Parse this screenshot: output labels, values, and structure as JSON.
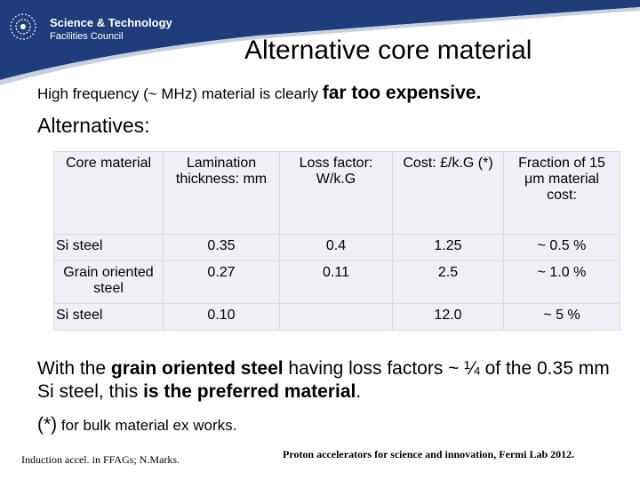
{
  "header": {
    "logo_line1": "Science & Technology",
    "logo_line2": "Facilities Council",
    "band_color": "#1f3d7a"
  },
  "slide": {
    "title": "Alternative core material",
    "subtitle_part1": "High frequency  (~ MHz) material is clearly ",
    "subtitle_emph": "far too expensive.",
    "alternatives_label": "Alternatives:"
  },
  "table": {
    "headers": [
      "Core material",
      "Lamination thickness: mm",
      "Loss factor: W/k.G",
      "Cost: £/k.G (*)",
      "Fraction of 15 μm material cost:"
    ],
    "rows": [
      [
        "Si steel",
        "0.35",
        "0.4",
        "1.25",
        "~ 0.5 %"
      ],
      [
        "Grain oriented steel",
        "0.27",
        "0.11",
        "2.5",
        "~ 1.0 %"
      ],
      [
        "Si steel",
        "0.10",
        "",
        "12.0",
        "~ 5  %"
      ]
    ]
  },
  "conclusion": {
    "part1": "With the ",
    "bold1": "grain oriented steel",
    "part2": " having loss factors ~ ¼  of the 0.35 mm Si steel, this ",
    "bold2": "is the preferred material",
    "part3": "."
  },
  "footnote": {
    "star": "(*)",
    "text": " for bulk material ex works."
  },
  "footer": {
    "left": "Induction accel. in FFAGs; N.Marks.",
    "right": "Proton accelerators for science and innovation, Fermi Lab 2012."
  }
}
